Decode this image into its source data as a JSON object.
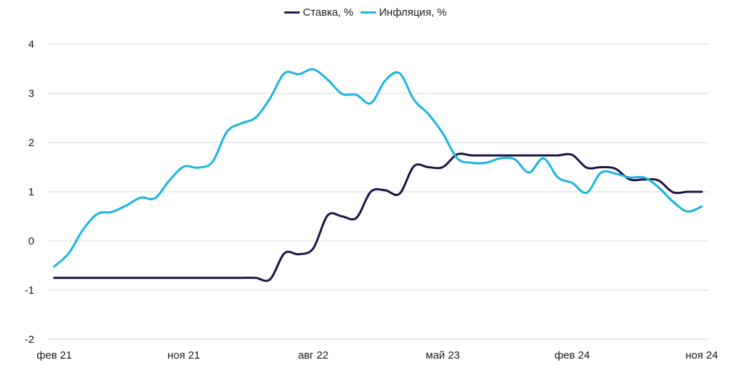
{
  "chart_data": {
    "type": "line",
    "title": "",
    "xlabel": "",
    "ylabel": "",
    "ylim": [
      -2,
      4
    ],
    "yticks": [
      4,
      3,
      2,
      1,
      0,
      -1,
      -2
    ],
    "yticklabels": [
      "4",
      "3",
      "2",
      "1",
      "0",
      "-1",
      "-2"
    ],
    "xtick_index": [
      0,
      9,
      18,
      27,
      36,
      45
    ],
    "xticklabels": [
      "фев 21",
      "ноя 21",
      "авг 22",
      "май 23",
      "фев 24",
      "ноя 24"
    ],
    "x_count": 46,
    "grid": true,
    "legend_position": "top-center",
    "series": [
      {
        "name": "Ставка, %",
        "color": "#1b1446",
        "values": [
          -0.75,
          -0.75,
          -0.75,
          -0.75,
          -0.75,
          -0.75,
          -0.75,
          -0.75,
          -0.75,
          -0.75,
          -0.75,
          -0.75,
          -0.75,
          -0.75,
          -0.75,
          -0.78,
          -0.25,
          -0.27,
          -0.15,
          0.52,
          0.5,
          0.47,
          1.0,
          1.03,
          0.96,
          1.52,
          1.5,
          1.5,
          1.76,
          1.74,
          1.74,
          1.74,
          1.74,
          1.74,
          1.74,
          1.74,
          1.75,
          1.49,
          1.5,
          1.47,
          1.25,
          1.25,
          1.23,
          0.99,
          1.0,
          1.0
        ]
      },
      {
        "name": "Инфляция, %",
        "color": "#1ab4e0",
        "values": [
          -0.52,
          -0.25,
          0.23,
          0.55,
          0.59,
          0.72,
          0.88,
          0.87,
          1.23,
          1.51,
          1.49,
          1.61,
          2.22,
          2.39,
          2.51,
          2.9,
          3.41,
          3.39,
          3.49,
          3.28,
          2.99,
          2.97,
          2.8,
          3.26,
          3.41,
          2.87,
          2.58,
          2.19,
          1.68,
          1.59,
          1.59,
          1.68,
          1.66,
          1.39,
          1.68,
          1.29,
          1.18,
          0.98,
          1.39,
          1.37,
          1.29,
          1.29,
          1.09,
          0.8,
          0.6,
          0.7
        ]
      }
    ]
  }
}
